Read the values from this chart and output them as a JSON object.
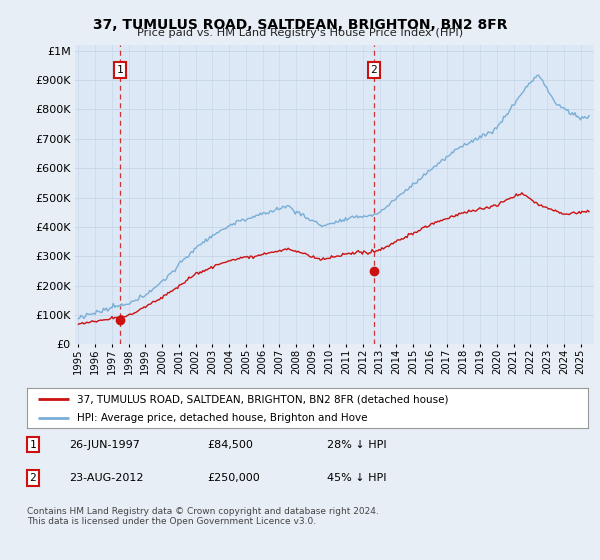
{
  "title": "37, TUMULUS ROAD, SALTDEAN, BRIGHTON, BN2 8FR",
  "subtitle": "Price paid vs. HM Land Registry's House Price Index (HPI)",
  "ytick_values": [
    0,
    100000,
    200000,
    300000,
    400000,
    500000,
    600000,
    700000,
    800000,
    900000,
    1000000
  ],
  "ymax": 1020000,
  "xmin": 1994.8,
  "xmax": 2025.8,
  "bg_color": "#e8eef5",
  "plot_bg": "#dce8f5",
  "grid_color": "#c8d8e8",
  "hpi_color": "#7aaed6",
  "price_color": "#cc1111",
  "sale1_year": 1997.49,
  "sale1_price": 84500,
  "sale2_year": 2012.64,
  "sale2_price": 250000,
  "annotation1": "1",
  "annotation2": "2",
  "legend_label1": "37, TUMULUS ROAD, SALTDEAN, BRIGHTON, BN2 8FR (detached house)",
  "legend_label2": "HPI: Average price, detached house, Brighton and Hove",
  "table_row1_num": "1",
  "table_row1_date": "26-JUN-1997",
  "table_row1_price": "£84,500",
  "table_row1_hpi": "28% ↓ HPI",
  "table_row2_num": "2",
  "table_row2_date": "23-AUG-2012",
  "table_row2_price": "£250,000",
  "table_row2_hpi": "45% ↓ HPI",
  "footnote": "Contains HM Land Registry data © Crown copyright and database right 2024.\nThis data is licensed under the Open Government Licence v3.0.",
  "dashed_line_color": "#cc3333",
  "vline1_x": 1997.49,
  "vline2_x": 2012.64
}
